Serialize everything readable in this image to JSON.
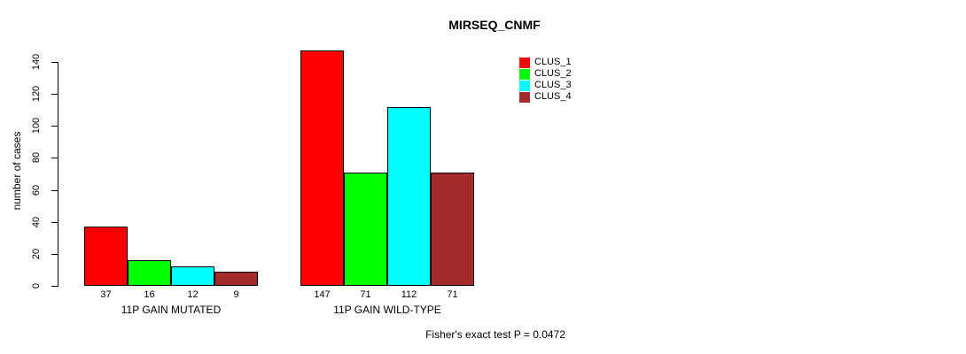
{
  "chart_data": {
    "type": "bar",
    "title": "MIRSEQ_CNMF",
    "ylabel": "number of cases",
    "xlabel": "",
    "annotation": "Fisher's exact test P = 0.0472",
    "categories": [
      "11P GAIN MUTATED",
      "11P GAIN WILD-TYPE"
    ],
    "series": [
      {
        "name": "CLUS_1",
        "color": "#FF0000",
        "values": [
          37,
          147
        ]
      },
      {
        "name": "CLUS_2",
        "color": "#00FF00",
        "values": [
          16,
          71
        ]
      },
      {
        "name": "CLUS_3",
        "color": "#00FFFF",
        "values": [
          12,
          112
        ]
      },
      {
        "name": "CLUS_4",
        "color": "#A52A2A",
        "values": [
          9,
          71
        ]
      }
    ],
    "bar_value_labels": [
      [
        37,
        16,
        12,
        9
      ],
      [
        147,
        71,
        112,
        71
      ]
    ],
    "yticks": [
      0,
      20,
      40,
      60,
      80,
      100,
      120,
      140
    ],
    "ylim": [
      0,
      140
    ],
    "grid": false,
    "legend_position": "top-right",
    "bar_border_color": "#000000",
    "background_color": "#FFFFFF"
  }
}
